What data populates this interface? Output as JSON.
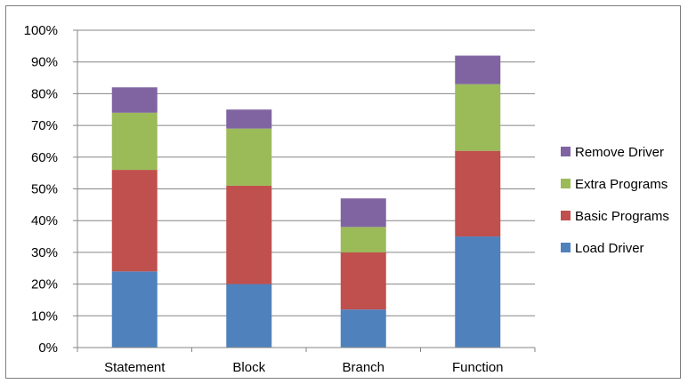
{
  "chart_data": {
    "type": "bar",
    "stacked": true,
    "categories": [
      "Statement",
      "Block",
      "Branch",
      "Function"
    ],
    "series": [
      {
        "name": "Load Driver",
        "values": [
          24,
          20,
          12,
          35
        ],
        "color": "#4f81bd"
      },
      {
        "name": "Basic Programs",
        "values": [
          32,
          31,
          18,
          27
        ],
        "color": "#c0504d"
      },
      {
        "name": "Extra Programs",
        "values": [
          18,
          18,
          8,
          21
        ],
        "color": "#9bbb59"
      },
      {
        "name": "Remove Driver",
        "values": [
          8,
          6,
          9,
          9
        ],
        "color": "#8064a2"
      }
    ],
    "ylim": [
      0,
      100
    ],
    "yticks": [
      "0%",
      "10%",
      "20%",
      "30%",
      "40%",
      "50%",
      "60%",
      "70%",
      "80%",
      "90%",
      "100%"
    ],
    "grid": true,
    "legend_position": "right",
    "legend_order": [
      "Remove Driver",
      "Extra Programs",
      "Basic Programs",
      "Load Driver"
    ],
    "title": "",
    "xlabel": "",
    "ylabel": ""
  }
}
